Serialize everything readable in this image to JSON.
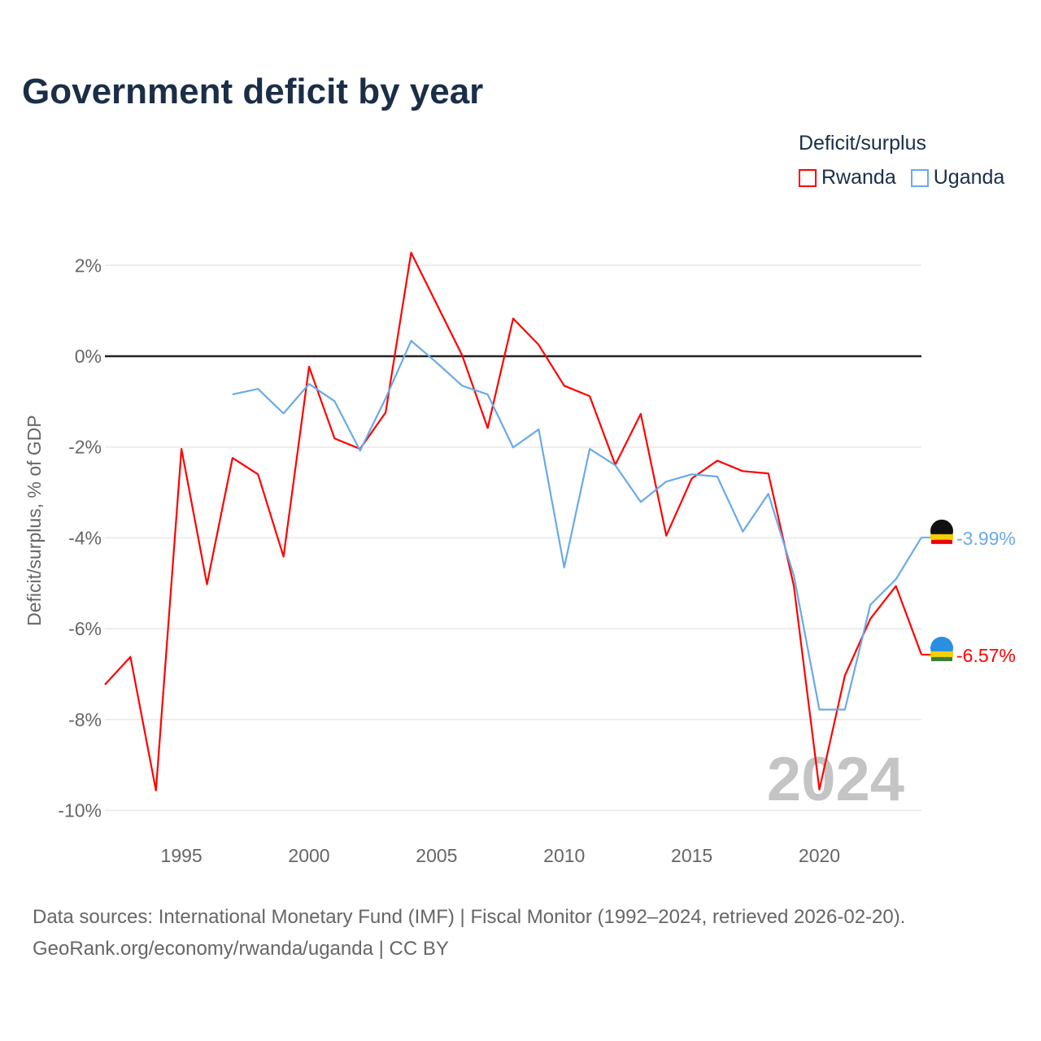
{
  "chart_data": {
    "type": "line",
    "title": "Government deficit by year",
    "ylabel": "Deficit/surplus, % of GDP",
    "xlabel": "",
    "legend_title": "Deficit/surplus",
    "legend_position": "top-right",
    "ylim": [
      -10,
      2
    ],
    "xlim": [
      1992,
      2024
    ],
    "yticks": [
      2,
      0,
      -2,
      -4,
      -6,
      -8,
      -10
    ],
    "ytick_labels": [
      "2%",
      "0%",
      "-2%",
      "-4%",
      "-6%",
      "-8%",
      "-10%"
    ],
    "xticks": [
      1995,
      2000,
      2005,
      2010,
      2015,
      2020
    ],
    "xtick_labels": [
      "1995",
      "2000",
      "2005",
      "2010",
      "2015",
      "2020"
    ],
    "watermark_year": "2024",
    "series": [
      {
        "name": "Rwanda",
        "color": "#ff0000",
        "end_label": "-6.57%",
        "x": [
          1992,
          1993,
          1994,
          1995,
          1996,
          1997,
          1998,
          1999,
          2000,
          2001,
          2002,
          2003,
          2004,
          2005,
          2006,
          2007,
          2008,
          2009,
          2010,
          2011,
          2012,
          2013,
          2014,
          2015,
          2016,
          2017,
          2018,
          2019,
          2020,
          2021,
          2022,
          2023,
          2024
        ],
        "values": [
          -7.23,
          -6.62,
          -9.56,
          -2.04,
          -5.02,
          -2.24,
          -2.6,
          -4.41,
          -0.23,
          -1.81,
          -2.04,
          -1.24,
          2.28,
          1.15,
          0.02,
          -1.58,
          0.83,
          0.25,
          -0.65,
          -0.88,
          -2.39,
          -1.27,
          -3.95,
          -2.69,
          -2.3,
          -2.53,
          -2.58,
          -5.06,
          -9.54,
          -7.03,
          -5.78,
          -5.06,
          -6.57
        ]
      },
      {
        "name": "Uganda",
        "color": "#6aaae8",
        "end_label": "-3.99%",
        "x": [
          1997,
          1998,
          1999,
          2000,
          2001,
          2002,
          2003,
          2004,
          2005,
          2006,
          2007,
          2008,
          2009,
          2010,
          2011,
          2012,
          2013,
          2014,
          2015,
          2016,
          2017,
          2018,
          2019,
          2020,
          2021,
          2022,
          2023,
          2024
        ],
        "values": [
          -0.84,
          -0.72,
          -1.26,
          -0.61,
          -0.99,
          -2.08,
          -0.93,
          0.34,
          -0.14,
          -0.65,
          -0.84,
          -2.01,
          -1.61,
          -4.65,
          -2.04,
          -2.4,
          -3.21,
          -2.76,
          -2.6,
          -2.65,
          -3.86,
          -3.03,
          -4.83,
          -7.78,
          -7.78,
          -5.47,
          -4.91,
          -3.99
        ]
      }
    ]
  },
  "footer": {
    "source_line": "Data sources: International Monetary Fund (IMF) | Fiscal Monitor (1992–2024, retrieved 2026-02-20).",
    "link_line": "GeoRank.org/economy/rwanda/uganda | CC BY"
  }
}
